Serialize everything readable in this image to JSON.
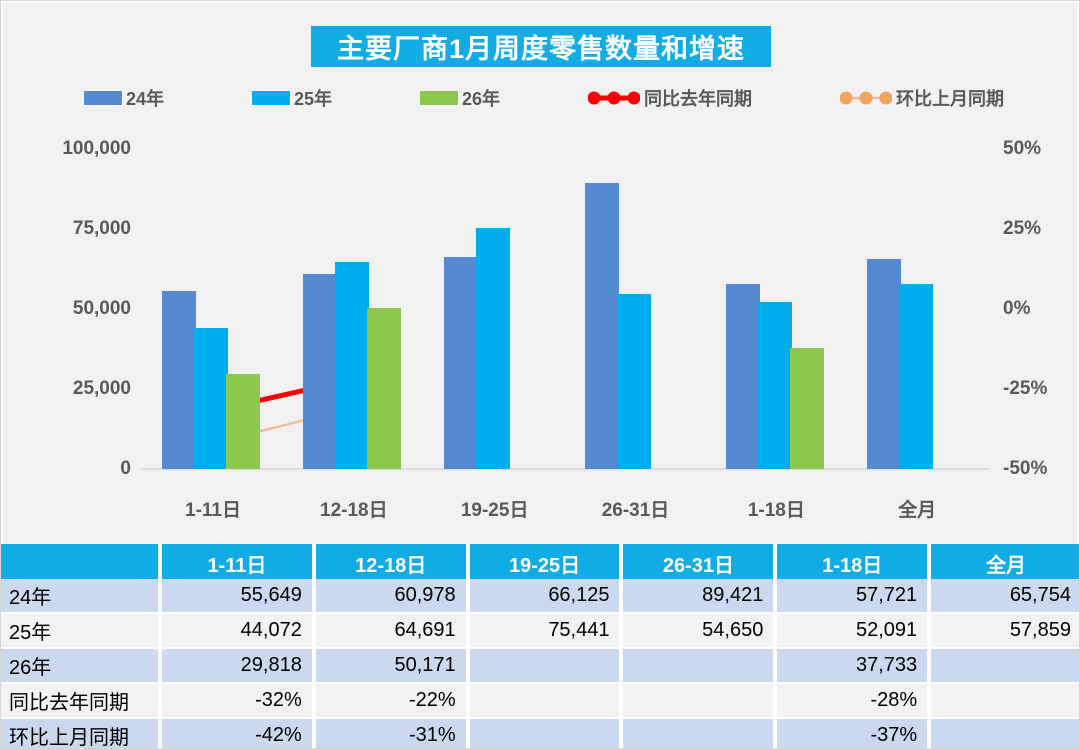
{
  "colors": {
    "header_cyan": "#12ace4",
    "bar_blue": "#5589d2",
    "bar_cyan": "#00aeef",
    "bar_green": "#8cc84b",
    "line_red": "#fe0000",
    "line_orange": "#f3bd94",
    "dot_orange": "#efa35d",
    "row_blue": "#cbd9ee",
    "row_gray": "#f2f2f2",
    "axis_text": "#595959",
    "background": "#f1f1f2"
  },
  "chart_data": {
    "type": "bar",
    "title": "主要厂商1月周度零售数量和增速",
    "categories": [
      "1-11日",
      "12-18日",
      "19-25日",
      "26-31日",
      "1-18日",
      "全月"
    ],
    "bar_series": [
      {
        "name": "24年",
        "color": "#5589d2",
        "values": [
          55649,
          60978,
          66125,
          89421,
          57721,
          65754
        ]
      },
      {
        "name": "25年",
        "color": "#00aeef",
        "values": [
          44072,
          64691,
          75441,
          54650,
          52091,
          57859
        ]
      },
      {
        "name": "26年",
        "color": "#8cc84b",
        "values": [
          29818,
          50171,
          null,
          null,
          37733,
          null
        ]
      }
    ],
    "line_series": [
      {
        "name": "同比去年同期",
        "color": "#fe0000",
        "dot_color": "#fe0000",
        "width": 5,
        "dot_r": 9,
        "values": [
          -32,
          -22,
          null,
          null,
          -28,
          null
        ]
      },
      {
        "name": "环比上月同期",
        "color": "#f3bd94",
        "dot_color": "#efa35d",
        "width": 2.5,
        "dot_r": 8,
        "values": [
          -42,
          -31,
          null,
          null,
          -37,
          null
        ]
      }
    ],
    "left_axis": {
      "ticks": [
        "100,000",
        "75,000",
        "50,000",
        "25,000",
        "0"
      ],
      "min": 0,
      "max": 100000
    },
    "right_axis": {
      "ticks": [
        "50%",
        "25%",
        "0%",
        "-25%",
        "-50%"
      ],
      "min": -50,
      "max": 50
    },
    "grid": false,
    "legend_position": "top"
  },
  "table": {
    "header": [
      "",
      "1-11日",
      "12-18日",
      "19-25日",
      "26-31日",
      "1-18日",
      "全月"
    ],
    "rows": [
      {
        "label": "24年",
        "cells": [
          "55,649",
          "60,978",
          "66,125",
          "89,421",
          "57,721",
          "65,754"
        ],
        "bg": "#cbd9ee"
      },
      {
        "label": "25年",
        "cells": [
          "44,072",
          "64,691",
          "75,441",
          "54,650",
          "52,091",
          "57,859"
        ],
        "bg": "#f2f2f2"
      },
      {
        "label": "26年",
        "cells": [
          "29,818",
          "50,171",
          "",
          "",
          "37,733",
          ""
        ],
        "bg": "#cbd9ee"
      },
      {
        "label": "同比去年同期",
        "cells": [
          "-32%",
          "-22%",
          "",
          "",
          "-28%",
          ""
        ],
        "bg": "#f2f2f2"
      },
      {
        "label": "环比上月同期",
        "cells": [
          "-42%",
          "-31%",
          "",
          "",
          "-37%",
          ""
        ],
        "bg": "#cbd9ee"
      }
    ]
  }
}
